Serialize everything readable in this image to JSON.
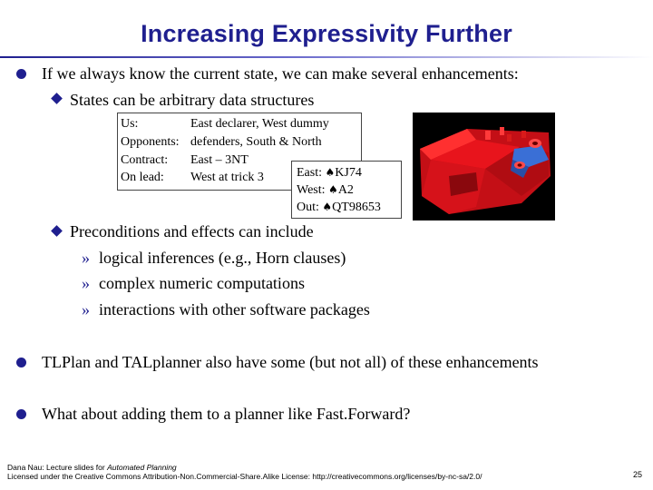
{
  "title": "Increasing Expressivity Further",
  "bullets": [
    "If we always know the current state, we can make several enhancements:",
    "TLPlan and TALplanner also have some (but not all) of these enhancements",
    "What about adding them to a planner like Fast.Forward?"
  ],
  "sub_bullets": [
    "States can be arbitrary data structures",
    "Preconditions and effects can include"
  ],
  "sub_sub_bullets": [
    "logical inferences (e.g., Horn clauses)",
    "complex numeric computations",
    "interactions with other software packages"
  ],
  "state_example": {
    "rows": [
      {
        "label": "Us:",
        "value": "East declarer, West dummy"
      },
      {
        "label": "Opponents:",
        "value": "defenders, South & North"
      },
      {
        "label": "Contract:",
        "value": "East – 3NT"
      },
      {
        "label": "On lead:",
        "value": "West at trick 3"
      }
    ],
    "hands": [
      {
        "player": "East:",
        "suit_symbol": "♠",
        "cards": "KJ74"
      },
      {
        "player": "West:",
        "suit_symbol": "♠",
        "cards": "A2"
      },
      {
        "player": "Out:",
        "suit_symbol": "♠",
        "cards": "QT98653"
      }
    ]
  },
  "image_3d": {
    "icon": "3d-machined-part-image",
    "colors": {
      "part": "#e8141c",
      "highlight": "#3a6fd6",
      "background": "#000000"
    }
  },
  "footer": {
    "line1_prefix": "Dana Nau: Lecture slides for ",
    "line1_italic": "Automated Planning",
    "line2": "Licensed under the Creative Commons Attribution-Non.Commercial-Share.Alike License: http://creativecommons.org/licenses/by-nc-sa/2.0/",
    "page": "25"
  },
  "colors": {
    "accent": "#1f1f8f"
  }
}
